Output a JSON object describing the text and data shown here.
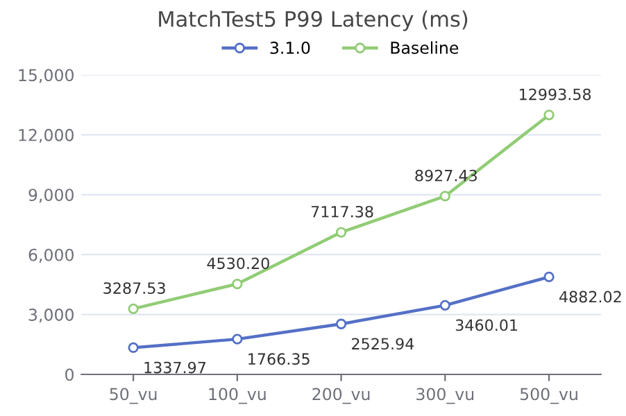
{
  "chart_data": {
    "type": "line",
    "title": "MatchTest5 P99 Latency (ms)",
    "categories": [
      "50_vu",
      "100_vu",
      "200_vu",
      "300_vu",
      "500_vu"
    ],
    "series": [
      {
        "name": "3.1.0",
        "color": "#5470c6",
        "values": [
          1337.97,
          1766.35,
          2525.94,
          3460.01,
          4882.02
        ],
        "value_labels": [
          "1337.97",
          "1766.35",
          "2525.94",
          "3460.01",
          "4882.02"
        ]
      },
      {
        "name": "Baseline",
        "color": "#91cc75",
        "values": [
          3287.53,
          4530.2,
          7117.38,
          8927.43,
          12993.58
        ],
        "value_labels": [
          "3287.53",
          "4530.20",
          "7117.38",
          "8927.43",
          "12993.58"
        ]
      }
    ],
    "ylim": [
      0,
      15000
    ],
    "yticks": [
      {
        "value": 0,
        "label": "0"
      },
      {
        "value": 3000,
        "label": "3,000"
      },
      {
        "value": 6000,
        "label": "6,000"
      },
      {
        "value": 9000,
        "label": "9,000"
      },
      {
        "value": 12000,
        "label": "12,000"
      },
      {
        "value": 15000,
        "label": "15,000"
      }
    ],
    "grid": "y",
    "legend": "top",
    "marker": "circle",
    "line_style": "solid"
  }
}
